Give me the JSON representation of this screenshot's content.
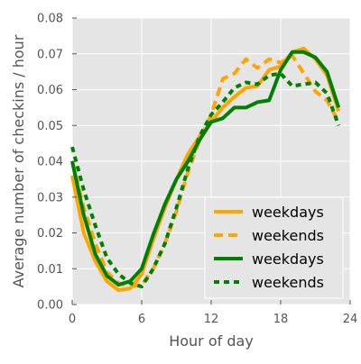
{
  "chart_data": {
    "type": "line",
    "title": "",
    "xlabel": "Hour of day",
    "ylabel": "Average number of checkins / hour",
    "xlim": [
      0,
      24
    ],
    "ylim": [
      0,
      0.08
    ],
    "xticks": [
      0,
      6,
      12,
      18,
      24
    ],
    "xtick_labels": [
      "0",
      "6",
      "12",
      "18",
      "24"
    ],
    "yticks": [
      0.0,
      0.01,
      0.02,
      0.03,
      0.04,
      0.05,
      0.06,
      0.07,
      0.08
    ],
    "ytick_labels": [
      "0.00",
      "0.01",
      "0.02",
      "0.03",
      "0.04",
      "0.05",
      "0.06",
      "0.07",
      "0.08"
    ],
    "grid": true,
    "background": "#e5e5e5",
    "legend_position": "lower-right",
    "x": [
      0,
      1,
      2,
      3,
      4,
      5,
      6,
      7,
      8,
      9,
      10,
      11,
      12,
      13,
      14,
      15,
      16,
      17,
      18,
      19,
      20,
      21,
      22,
      23
    ],
    "series": [
      {
        "name": "weekdays",
        "color": "#ffa500",
        "style": "solid",
        "values": [
          0.036,
          0.02,
          0.012,
          0.0065,
          0.004,
          0.0045,
          0.0085,
          0.018,
          0.027,
          0.035,
          0.042,
          0.047,
          0.051,
          0.055,
          0.058,
          0.0605,
          0.061,
          0.0655,
          0.0665,
          0.0705,
          0.0715,
          0.0685,
          0.064,
          0.054
        ]
      },
      {
        "name": "weekends",
        "color": "#ffa500",
        "style": "dashed",
        "values": [
          0.04,
          0.027,
          0.017,
          0.009,
          0.006,
          0.005,
          0.0055,
          0.01,
          0.017,
          0.026,
          0.037,
          0.046,
          0.053,
          0.063,
          0.0645,
          0.0685,
          0.066,
          0.0685,
          0.0675,
          0.0695,
          0.0645,
          0.0595,
          0.057,
          0.051
        ]
      },
      {
        "name": "weekdays",
        "color": "#008000",
        "style": "solid",
        "values": [
          0.04,
          0.025,
          0.014,
          0.008,
          0.0055,
          0.0065,
          0.01,
          0.0195,
          0.028,
          0.035,
          0.04,
          0.046,
          0.051,
          0.052,
          0.055,
          0.055,
          0.0565,
          0.057,
          0.0655,
          0.0705,
          0.0705,
          0.069,
          0.065,
          0.055
        ]
      },
      {
        "name": "weekends",
        "color": "#008000",
        "style": "dotted",
        "values": [
          0.044,
          0.032,
          0.022,
          0.013,
          0.0085,
          0.006,
          0.005,
          0.01,
          0.017,
          0.027,
          0.038,
          0.047,
          0.053,
          0.0565,
          0.0605,
          0.062,
          0.0615,
          0.064,
          0.0645,
          0.061,
          0.0615,
          0.062,
          0.059,
          0.05
        ]
      }
    ]
  }
}
